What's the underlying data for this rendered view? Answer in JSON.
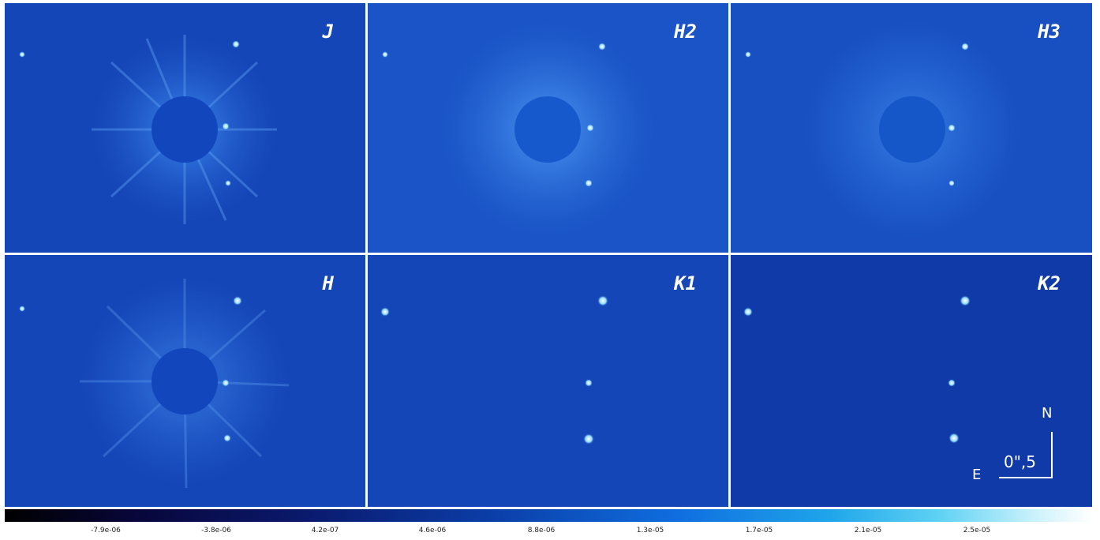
{
  "panels": [
    {
      "label": "J"
    },
    {
      "label": "H2"
    },
    {
      "label": "H3"
    },
    {
      "label": "H"
    },
    {
      "label": "K1"
    },
    {
      "label": "K2"
    }
  ],
  "compass": {
    "north": "N",
    "east": "E",
    "scale": "0\",5"
  },
  "colorbar": {
    "ticks": [
      "-7.9e-06",
      "-3.8e-06",
      "4.2e-07",
      "4.6e-06",
      "8.8e-06",
      "1.3e-05",
      "1.7e-05",
      "2.1e-05",
      "2.5e-05"
    ]
  },
  "colors": {
    "background": "#1240b4",
    "mask": "#1146bd",
    "divider": "#ffffff"
  }
}
